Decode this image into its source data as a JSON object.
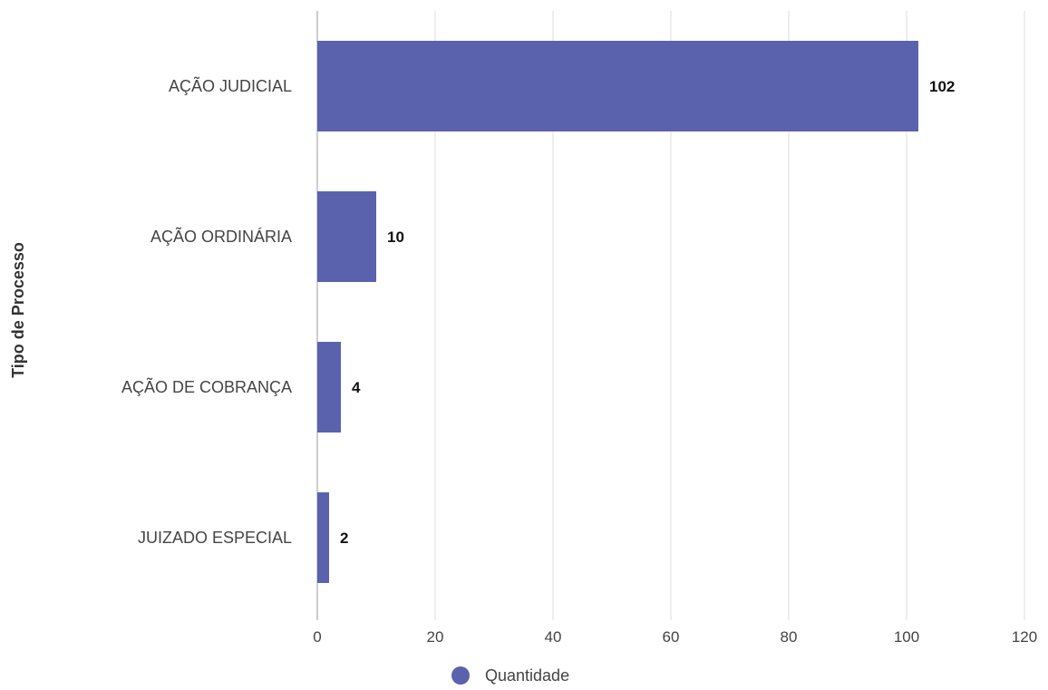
{
  "chart_data": {
    "type": "bar",
    "orientation": "horizontal",
    "categories": [
      "AÇÃO JUDICIAL",
      "AÇÃO ORDINÁRIA",
      "AÇÃO DE COBRANÇA",
      "JUIZADO ESPECIAL"
    ],
    "series": [
      {
        "name": "Quantidade",
        "values": [
          102,
          10,
          4,
          2
        ]
      }
    ],
    "xlabel": "",
    "ylabel": "Tipo de Processo",
    "xlim": [
      0,
      120
    ],
    "xticks": [
      "0",
      "20",
      "40",
      "60",
      "80",
      "100",
      "120"
    ],
    "data_labels": [
      "102",
      "10",
      "4",
      "2"
    ],
    "grid": "vertical",
    "legend": "bottom",
    "colors": {
      "bar": "#5b62ad",
      "grid": "#e3e3e3",
      "axis": "#bdbdbd"
    }
  }
}
